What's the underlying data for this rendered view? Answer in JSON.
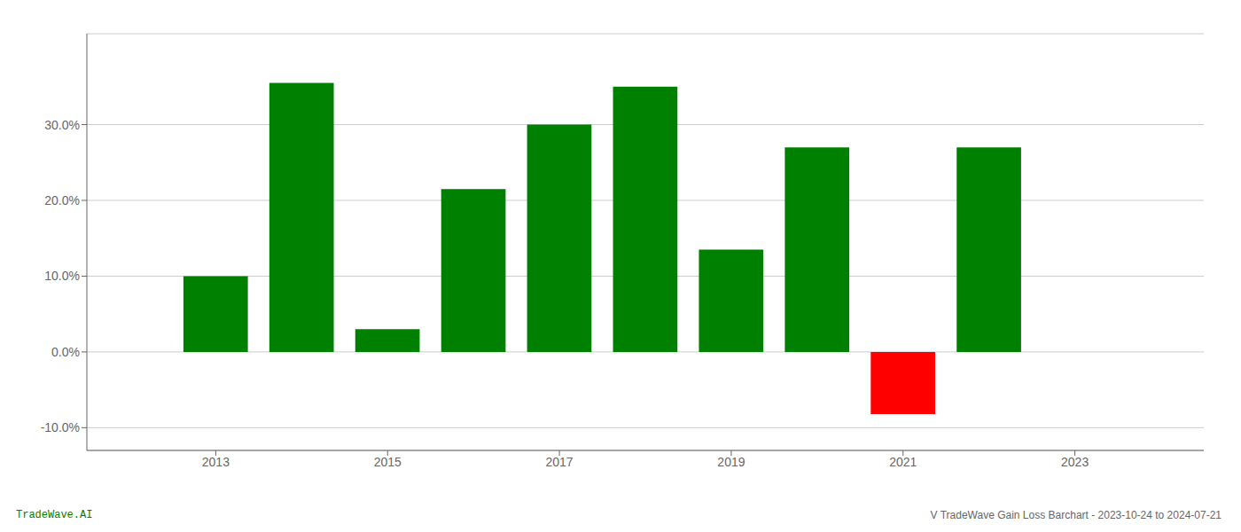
{
  "chart_data": {
    "type": "bar",
    "title": "V TradeWave Gain Loss Barchart - 2023-10-24 to 2024-07-21",
    "annotations": [
      {
        "text": "TradeWave.AI",
        "color": "#008000"
      }
    ],
    "x": [
      2013,
      2014,
      2015,
      2016,
      2017,
      2018,
      2019,
      2020,
      2021,
      2022
    ],
    "values": [
      0.1,
      0.355,
      0.03,
      0.215,
      0.3,
      0.35,
      0.135,
      0.27,
      -0.082,
      0.27
    ],
    "colors": [
      "#008000",
      "#008000",
      "#008000",
      "#008000",
      "#008000",
      "#008000",
      "#008000",
      "#008000",
      "#ff0000",
      "#008000"
    ],
    "xlim": [
      2011.5,
      2024.5
    ],
    "xticks": [
      2013,
      2015,
      2017,
      2019,
      2021,
      2023
    ],
    "ylim": [
      -0.13,
      0.42
    ],
    "yticks": [
      {
        "value": -0.1,
        "label": "-10.0%"
      },
      {
        "value": 0.0,
        "label": "0.0%"
      },
      {
        "value": 0.1,
        "label": "10.0%"
      },
      {
        "value": 0.2,
        "label": "20.0%"
      },
      {
        "value": 0.3,
        "label": "30.0%"
      }
    ],
    "grid": true
  }
}
